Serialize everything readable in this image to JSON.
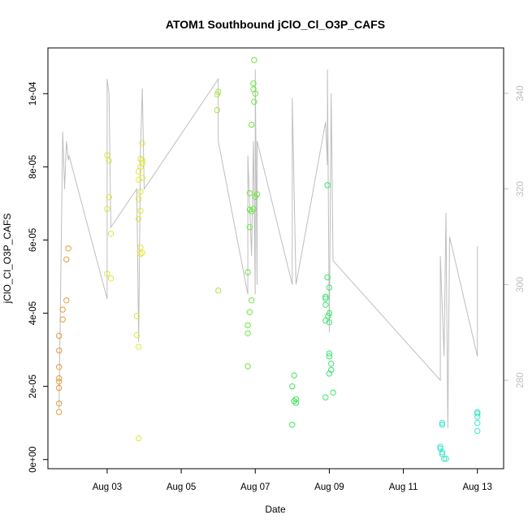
{
  "chart_data": {
    "type": "scatter",
    "title": "ATOM1 Southbound jClO_Cl_O3P_CAFS",
    "xlabel": "Date",
    "ylabel": "jClO_Cl_O3P_CAFS",
    "x_ticks": [
      "Aug 03",
      "Aug 05",
      "Aug 07",
      "Aug 09",
      "Aug 11",
      "Aug 13"
    ],
    "y_ticks": [
      "0e+00",
      "2e-05",
      "4e-05",
      "6e-05",
      "8e-05",
      "1e-04"
    ],
    "y2_ticks": [
      "280",
      "300",
      "320",
      "340"
    ],
    "xlim": [
      "2016-08-01T09:36",
      "2016-08-13T17:00"
    ],
    "ylim": [
      -2.5e-06,
      0.0001125
    ],
    "y2lim": [
      261.5,
      349.5
    ],
    "grid": false,
    "series": [
      {
        "color": "#E69A3C",
        "points": [
          [
            "2016-08-01T16:48",
            1.3e-05
          ],
          [
            "2016-08-01T16:48",
            1.53e-05
          ],
          [
            "2016-08-01T16:48",
            1.96e-05
          ],
          [
            "2016-08-01T16:48",
            2.13e-05
          ],
          [
            "2016-08-01T16:48",
            2.22e-05
          ],
          [
            "2016-08-01T16:48",
            2.53e-05
          ],
          [
            "2016-08-01T16:48",
            2.98e-05
          ],
          [
            "2016-08-01T16:48",
            3.38e-05
          ],
          [
            "2016-08-01T19:12",
            3.83e-05
          ],
          [
            "2016-08-01T19:12",
            4.1e-05
          ],
          [
            "2016-08-01T21:36",
            4.35e-05
          ],
          [
            "2016-08-01T21:36",
            5.47e-05
          ],
          [
            "2016-08-01T22:48",
            5.77e-05
          ]
        ]
      },
      {
        "color": "#D9E63C",
        "points": [
          [
            "2016-08-03T00:00",
            5.08e-05
          ],
          [
            "2016-08-03T02:24",
            4.95e-05
          ],
          [
            "2016-08-03T02:24",
            6.17e-05
          ],
          [
            "2016-08-03T00:00",
            6.85e-05
          ],
          [
            "2016-08-03T01:12",
            7.17e-05
          ],
          [
            "2016-08-03T00:00",
            8.32e-05
          ],
          [
            "2016-08-03T01:12",
            8.17e-05
          ]
        ]
      },
      {
        "color": "#E2E63C",
        "points": [
          [
            "2016-08-03T20:24",
            5.8e-06
          ],
          [
            "2016-08-03T20:24",
            3.08e-05
          ],
          [
            "2016-08-03T19:12",
            3.4e-05
          ],
          [
            "2016-08-03T19:12",
            3.92e-05
          ],
          [
            "2016-08-03T21:36",
            5.62e-05
          ],
          [
            "2016-08-03T22:48",
            5.65e-05
          ],
          [
            "2016-08-03T21:36",
            5.8e-05
          ],
          [
            "2016-08-03T20:24",
            6.58e-05
          ],
          [
            "2016-08-03T21:36",
            6.8e-05
          ],
          [
            "2016-08-03T20:24",
            7.12e-05
          ],
          [
            "2016-08-03T21:36",
            7.32e-05
          ],
          [
            "2016-08-03T20:24",
            7.65e-05
          ],
          [
            "2016-08-03T22:48",
            7.7e-05
          ],
          [
            "2016-08-03T20:24",
            7.87e-05
          ],
          [
            "2016-08-03T21:36",
            8e-05
          ],
          [
            "2016-08-03T22:48",
            8.1e-05
          ],
          [
            "2016-08-03T21:36",
            8.22e-05
          ],
          [
            "2016-08-03T22:48",
            8.18e-05
          ],
          [
            "2016-08-03T22:48",
            8.65e-05
          ]
        ]
      },
      {
        "color": "#A8E63C",
        "points": [
          [
            "2016-08-06T00:00",
            4.62e-05
          ],
          [
            "2016-08-05T23:17",
            9.55e-05
          ],
          [
            "2016-08-05T23:17",
            9.98e-05
          ],
          [
            "2016-08-06T00:00",
            0.0001005
          ]
        ]
      },
      {
        "color": "#6CE63C",
        "points": [
          [
            "2016-08-06T19:12",
            2.55e-05
          ],
          [
            "2016-08-06T19:12",
            3.45e-05
          ],
          [
            "2016-08-06T19:12",
            3.67e-05
          ],
          [
            "2016-08-06T20:24",
            4.03e-05
          ],
          [
            "2016-08-06T21:36",
            4.35e-05
          ],
          [
            "2016-08-06T19:12",
            5.12e-05
          ],
          [
            "2016-08-06T20:24",
            6.35e-05
          ],
          [
            "2016-08-06T21:36",
            6.78e-05
          ],
          [
            "2016-08-06T20:24",
            6.83e-05
          ],
          [
            "2016-08-06T22:48",
            6.85e-05
          ],
          [
            "2016-08-06T20:24",
            7.28e-05
          ],
          [
            "2016-08-07T00:00",
            7.18e-05
          ],
          [
            "2016-08-07T01:12",
            7.25e-05
          ],
          [
            "2016-08-06T21:36",
            9.15e-05
          ],
          [
            "2016-08-06T23:17",
            9.78e-05
          ],
          [
            "2016-08-07T00:00",
            0.0001
          ],
          [
            "2016-08-06T22:48",
            0.0001012
          ],
          [
            "2016-08-06T22:48",
            0.0001028
          ],
          [
            "2016-08-06T23:17",
            0.0001092
          ]
        ]
      },
      {
        "color": "#3CE65A",
        "points": [
          [
            "2016-08-08T00:00",
            9.5e-06
          ],
          [
            "2016-08-08T02:24",
            1.55e-05
          ],
          [
            "2016-08-08T01:12",
            1.6e-05
          ],
          [
            "2016-08-08T02:24",
            1.65e-05
          ],
          [
            "2016-08-08T00:00",
            2e-05
          ],
          [
            "2016-08-08T01:12",
            2.3e-05
          ]
        ]
      },
      {
        "color": "#3CE66E",
        "points": [
          [
            "2016-08-08T21:36",
            1.7e-05
          ],
          [
            "2016-08-09T02:24",
            1.83e-05
          ],
          [
            "2016-08-09T00:00",
            2.35e-05
          ],
          [
            "2016-08-09T01:12",
            2.45e-05
          ],
          [
            "2016-08-09T01:12",
            2.62e-05
          ],
          [
            "2016-08-09T00:00",
            2.82e-05
          ],
          [
            "2016-08-09T00:00",
            2.9e-05
          ],
          [
            "2016-08-08T21:36",
            3.8e-05
          ],
          [
            "2016-08-09T00:00",
            3.75e-05
          ],
          [
            "2016-08-08T23:17",
            3.93e-05
          ],
          [
            "2016-08-09T00:00",
            4e-05
          ],
          [
            "2016-08-08T21:36",
            4.23e-05
          ],
          [
            "2016-08-08T21:36",
            4.4e-05
          ],
          [
            "2016-08-08T21:36",
            4.45e-05
          ],
          [
            "2016-08-09T00:00",
            4.7e-05
          ],
          [
            "2016-08-08T22:48",
            4.98e-05
          ],
          [
            "2016-08-08T22:48",
            7.5e-05
          ]
        ]
      },
      {
        "color": "#3CE6C8",
        "points": [
          [
            "2016-08-12T00:00",
            3.5e-06
          ],
          [
            "2016-08-12T00:00",
            3e-06
          ],
          [
            "2016-08-12T01:12",
            2e-06
          ],
          [
            "2016-08-12T01:12",
            1.5e-06
          ],
          [
            "2016-08-12T02:24",
            2e-07
          ],
          [
            "2016-08-12T03:36",
            2e-07
          ],
          [
            "2016-08-12T01:12",
            1e-05
          ],
          [
            "2016-08-12T01:12",
            9.5e-06
          ],
          [
            "2016-08-13T00:00",
            7.8e-06
          ],
          [
            "2016-08-13T00:00",
            1e-05
          ],
          [
            "2016-08-13T00:00",
            1.17e-05
          ],
          [
            "2016-08-13T00:00",
            1.26e-05
          ],
          [
            "2016-08-13T00:00",
            1.3e-05
          ]
        ]
      }
    ],
    "secondary_line": {
      "color": "#bebebe",
      "points": [
        [
          "2016-08-01T16:48",
          274
        ],
        [
          "2016-08-01T19:12",
          332
        ],
        [
          "2016-08-01T20:24",
          320
        ],
        [
          "2016-08-01T21:36",
          330
        ],
        [
          "2016-08-01T22:48",
          326
        ],
        [
          "2016-08-01T23:17",
          327
        ],
        [
          "2016-08-03T00:00",
          297
        ],
        [
          "2016-08-03T00:00",
          343
        ],
        [
          "2016-08-03T01:12",
          340
        ],
        [
          "2016-08-03T02:24",
          312
        ],
        [
          "2016-08-03T19:12",
          320
        ],
        [
          "2016-08-03T20:24",
          288
        ],
        [
          "2016-08-03T21:36",
          328
        ],
        [
          "2016-08-03T22:48",
          341
        ],
        [
          "2016-08-04T00:00",
          320
        ],
        [
          "2016-08-06T00:00",
          343
        ],
        [
          "2016-08-06T00:00",
          330
        ],
        [
          "2016-08-06T19:12",
          298
        ],
        [
          "2016-08-06T19:12",
          327
        ],
        [
          "2016-08-06T21:36",
          306
        ],
        [
          "2016-08-06T22:48",
          330
        ],
        [
          "2016-08-07T00:00",
          298
        ],
        [
          "2016-08-07T00:00",
          345
        ],
        [
          "2016-08-07T01:12",
          300
        ],
        [
          "2016-08-07T01:12",
          330
        ],
        [
          "2016-08-08T00:00",
          300
        ],
        [
          "2016-08-08T00:00",
          339
        ],
        [
          "2016-08-08T02:24",
          300
        ],
        [
          "2016-08-08T21:36",
          334
        ],
        [
          "2016-08-08T22:48",
          325
        ],
        [
          "2016-08-08T22:48",
          345
        ],
        [
          "2016-08-09T00:00",
          290
        ],
        [
          "2016-08-09T01:12",
          340
        ],
        [
          "2016-08-09T02:24",
          305
        ],
        [
          "2016-08-12T00:00",
          280
        ],
        [
          "2016-08-12T00:00",
          306
        ],
        [
          "2016-08-12T02:24",
          285
        ],
        [
          "2016-08-12T03:36",
          315
        ],
        [
          "2016-08-12T04:48",
          270
        ],
        [
          "2016-08-12T06:00",
          310
        ],
        [
          "2016-08-13T00:00",
          285
        ],
        [
          "2016-08-13T00:00",
          308
        ]
      ]
    }
  }
}
